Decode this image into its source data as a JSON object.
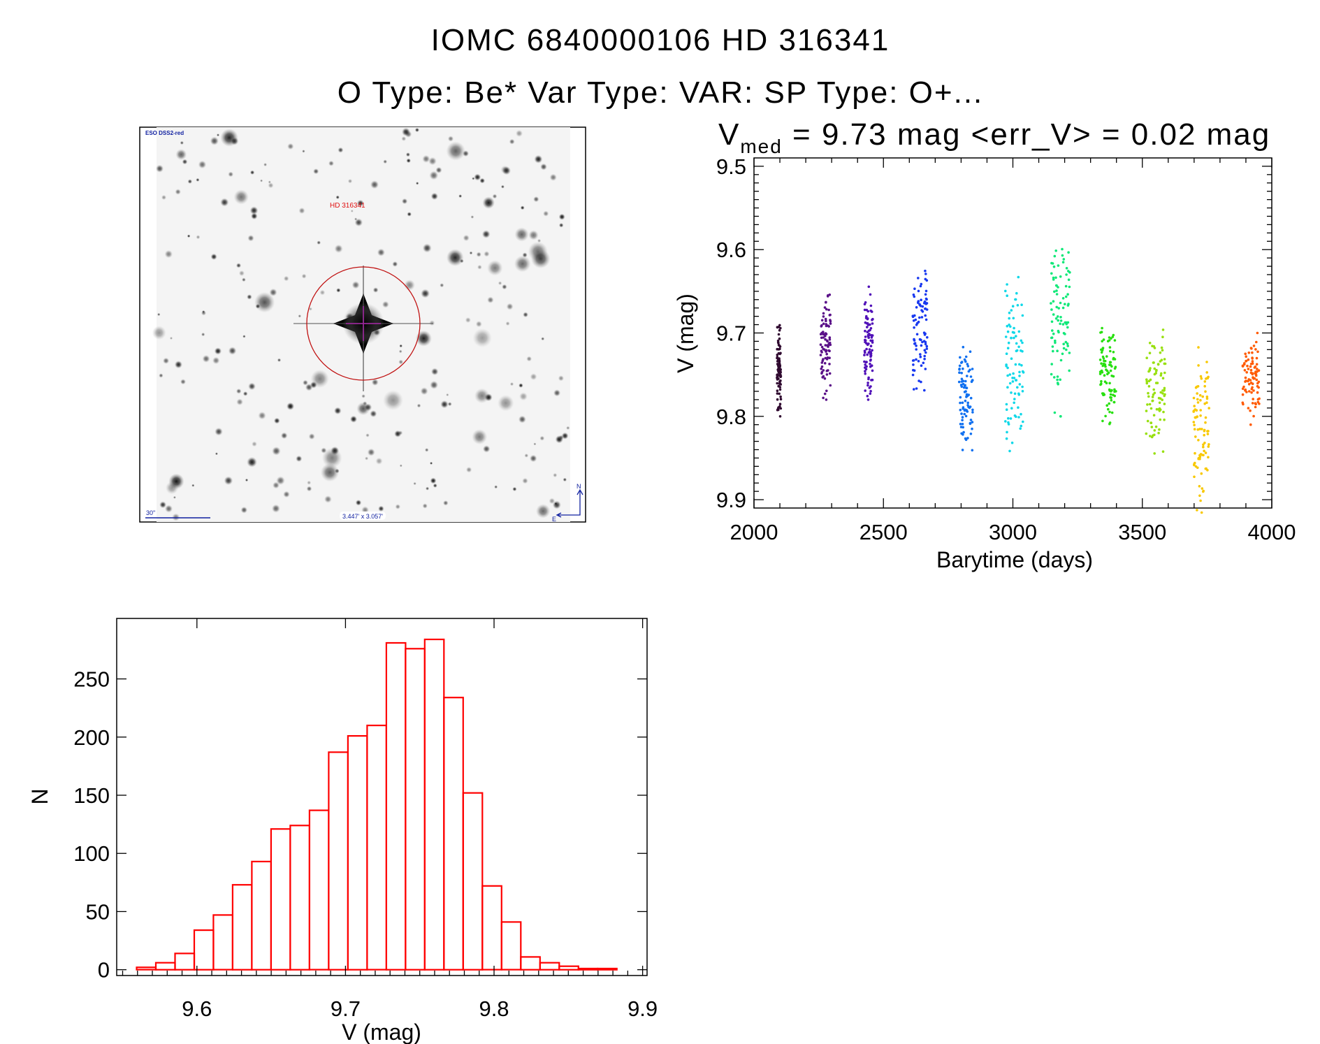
{
  "header": {
    "title_line1": "IOMC 6840000106    HD 316341",
    "title_line2": "O Type: Be*  Var Type: VAR:  SP Type: O+..."
  },
  "image_panel": {
    "survey_label": "ESO DSS2-red",
    "target_label": "HD 316341",
    "scale_bar_label": "30\"",
    "field_size_label": "3.447' x 3.057'",
    "north_label": "N",
    "east_label": "E",
    "label_color": "#1020a0",
    "target_color": "#e01010"
  },
  "chart_data": [
    {
      "type": "scatter",
      "title_main": "V",
      "title_sub": "med",
      "title_rest": " = 9.73 mag <err_V> = 0.02 mag",
      "xlabel": "Barytime (days)",
      "ylabel": "V (mag)",
      "xlim": [
        2000,
        4000
      ],
      "ylim": [
        9.49,
        9.91
      ],
      "y_inverted": true,
      "xticks": [
        "2000",
        "2500",
        "3000",
        "3500",
        "4000"
      ],
      "yticks": [
        "9.5",
        "9.6",
        "9.7",
        "9.8",
        "9.9"
      ],
      "grid": false,
      "seasons": [
        {
          "t": [
            2088,
            2104
          ],
          "v": [
            9.69,
            9.8
          ],
          "color": "#300a30"
        },
        {
          "t": [
            2257,
            2296
          ],
          "v": [
            9.65,
            9.78
          ],
          "color": "#5a1088"
        },
        {
          "t": [
            2426,
            2459
          ],
          "v": [
            9.64,
            9.78
          ],
          "color": "#5010b8"
        },
        {
          "t": [
            2613,
            2670
          ],
          "v": [
            9.6,
            9.77
          ],
          "color": "#1838f0"
        },
        {
          "t": [
            2792,
            2846
          ],
          "v": [
            9.7,
            9.85
          ],
          "color": "#1070f0"
        },
        {
          "t": [
            2971,
            3041
          ],
          "v": [
            9.62,
            9.85
          ],
          "color": "#10d8e8"
        },
        {
          "t": [
            3145,
            3220
          ],
          "v": [
            9.56,
            9.8
          ],
          "color": "#10e878"
        },
        {
          "t": [
            3337,
            3398
          ],
          "v": [
            9.69,
            9.81
          ],
          "color": "#28e010"
        },
        {
          "t": [
            3515,
            3589
          ],
          "v": [
            9.69,
            9.86
          ],
          "color": "#98e010"
        },
        {
          "t": [
            3697,
            3759
          ],
          "v": [
            9.7,
            9.92
          ],
          "color": "#f8c800"
        },
        {
          "t": [
            3886,
            3954
          ],
          "v": [
            9.7,
            9.81
          ],
          "color": "#ff5a00"
        }
      ]
    },
    {
      "type": "bar",
      "subtype": "histogram",
      "xlabel": "V (mag)",
      "ylabel": "N",
      "xlim": [
        9.546,
        9.903
      ],
      "ylim": [
        -5,
        302
      ],
      "xticks": [
        "9.6",
        "9.7",
        "9.8",
        "9.9"
      ],
      "yticks": [
        "0",
        "50",
        "100",
        "150",
        "200",
        "250"
      ],
      "bin_start": 9.5594,
      "bin_width": 0.01293,
      "values": [
        2,
        6,
        14,
        34,
        47,
        73,
        93,
        121,
        124,
        137,
        187,
        201,
        210,
        281,
        276,
        284,
        234,
        152,
        72,
        41,
        11,
        6,
        3,
        1,
        1
      ],
      "color": "#ff0000",
      "grid": false
    }
  ]
}
